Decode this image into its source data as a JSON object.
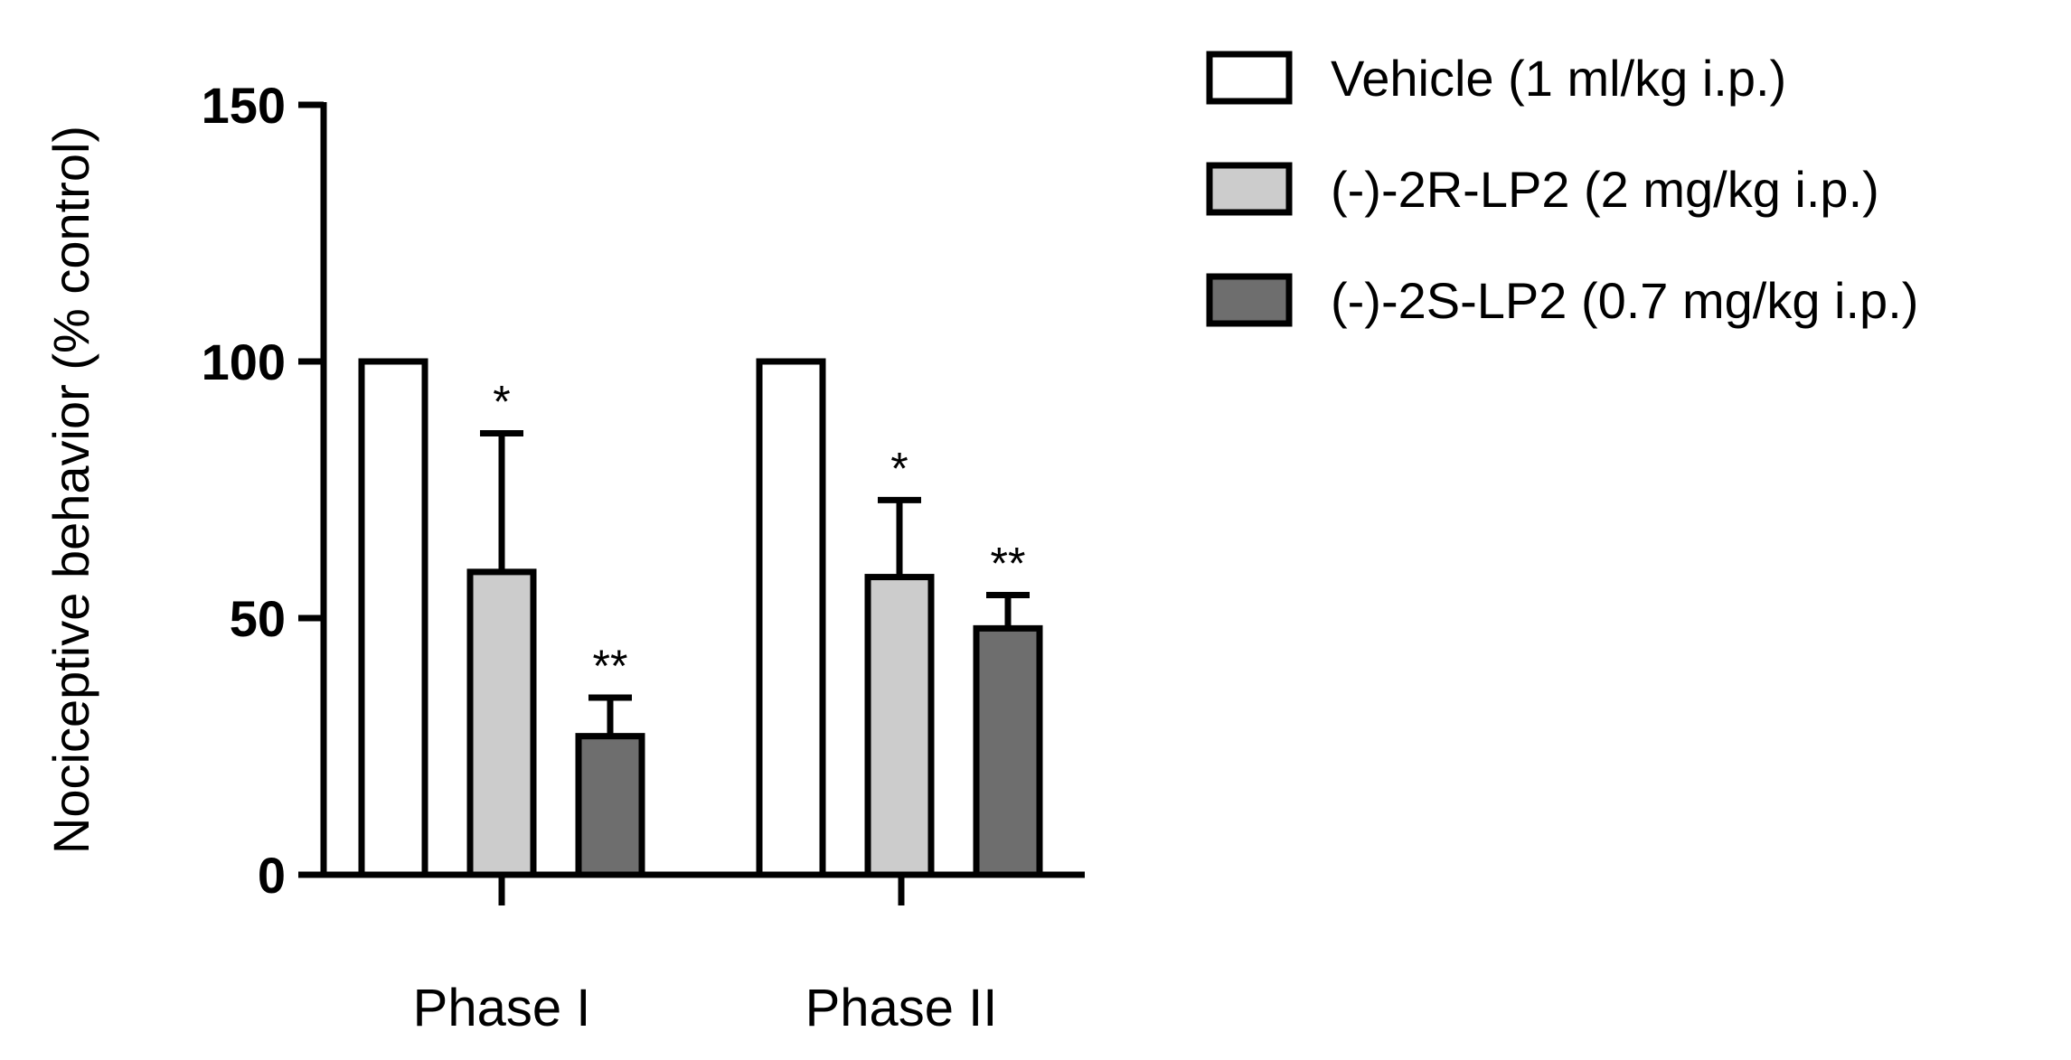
{
  "chart_data": {
    "type": "bar",
    "ylabel": "Nociceptive behavior (% control)",
    "ylim": [
      0,
      150
    ],
    "yticks": [
      "0",
      "50",
      "100",
      "150"
    ],
    "categories": [
      "Phase I",
      "Phase II"
    ],
    "series": [
      {
        "name": "Vehicle (1 ml/kg i.p.)",
        "color": "#ffffff",
        "values": [
          100,
          100
        ],
        "errors": [
          0,
          0
        ],
        "significance": [
          "",
          ""
        ]
      },
      {
        "name": "(-)-2R-LP2 (2 mg/kg i.p.)",
        "color": "#cccccc",
        "values": [
          59,
          58
        ],
        "errors": [
          27,
          15
        ],
        "significance": [
          "*",
          "*"
        ]
      },
      {
        "name": "(-)-2S-LP2 (0.7 mg/kg i.p.)",
        "color": "#6e6e6e",
        "values": [
          27,
          48
        ],
        "errors": [
          7.5,
          6.5
        ],
        "significance": [
          "**",
          "**"
        ]
      }
    ],
    "legend_position": "top-right",
    "grid": false
  }
}
